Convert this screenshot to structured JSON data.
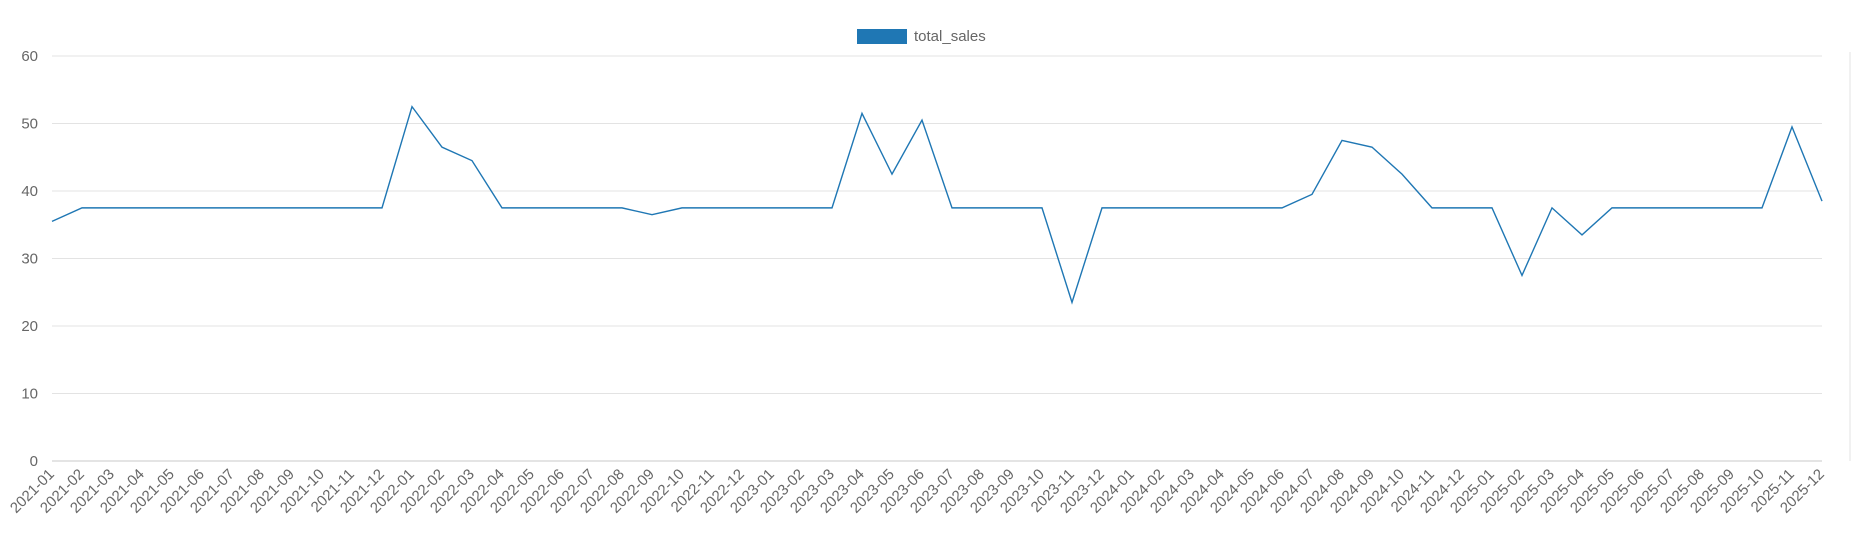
{
  "chart_data": {
    "type": "line",
    "title": "",
    "xlabel": "",
    "ylabel": "",
    "ylim": [
      0,
      60
    ],
    "yticks": [
      0,
      10,
      20,
      30,
      40,
      50,
      60
    ],
    "grid": true,
    "legend_position": "top-center",
    "x": [
      "2021-01",
      "2021-02",
      "2021-03",
      "2021-04",
      "2021-05",
      "2021-06",
      "2021-07",
      "2021-08",
      "2021-09",
      "2021-10",
      "2021-11",
      "2021-12",
      "2022-01",
      "2022-02",
      "2022-03",
      "2022-04",
      "2022-05",
      "2022-06",
      "2022-07",
      "2022-08",
      "2022-09",
      "2022-10",
      "2022-11",
      "2022-12",
      "2023-01",
      "2023-02",
      "2023-03",
      "2023-04",
      "2023-05",
      "2023-06",
      "2023-07",
      "2023-08",
      "2023-09",
      "2023-10",
      "2023-11",
      "2023-12",
      "2024-01",
      "2024-02",
      "2024-03",
      "2024-04",
      "2024-05",
      "2024-06",
      "2024-07",
      "2024-08",
      "2024-09",
      "2024-10",
      "2024-11",
      "2024-12",
      "2025-01",
      "2025-02",
      "2025-03",
      "2025-04",
      "2025-05",
      "2025-06",
      "2025-07",
      "2025-08",
      "2025-09",
      "2025-10",
      "2025-11",
      "2025-12"
    ],
    "series": [
      {
        "name": "total_sales",
        "color": "#1f77b4",
        "values": [
          35.5,
          37.5,
          37.5,
          37.5,
          37.5,
          37.5,
          37.5,
          37.5,
          37.5,
          37.5,
          37.5,
          37.5,
          52.5,
          46.5,
          44.5,
          37.5,
          37.5,
          37.5,
          37.5,
          37.5,
          36.5,
          37.5,
          37.5,
          37.5,
          37.5,
          37.5,
          37.5,
          51.5,
          42.5,
          50.5,
          37.5,
          37.5,
          37.5,
          37.5,
          23.5,
          37.5,
          37.5,
          37.5,
          37.5,
          37.5,
          37.5,
          37.5,
          39.5,
          47.5,
          46.5,
          42.5,
          37.5,
          37.5,
          37.5,
          27.5,
          37.5,
          33.5,
          37.5,
          37.5,
          37.5,
          37.5,
          37.5,
          37.5,
          49.5,
          38.5
        ]
      }
    ]
  }
}
